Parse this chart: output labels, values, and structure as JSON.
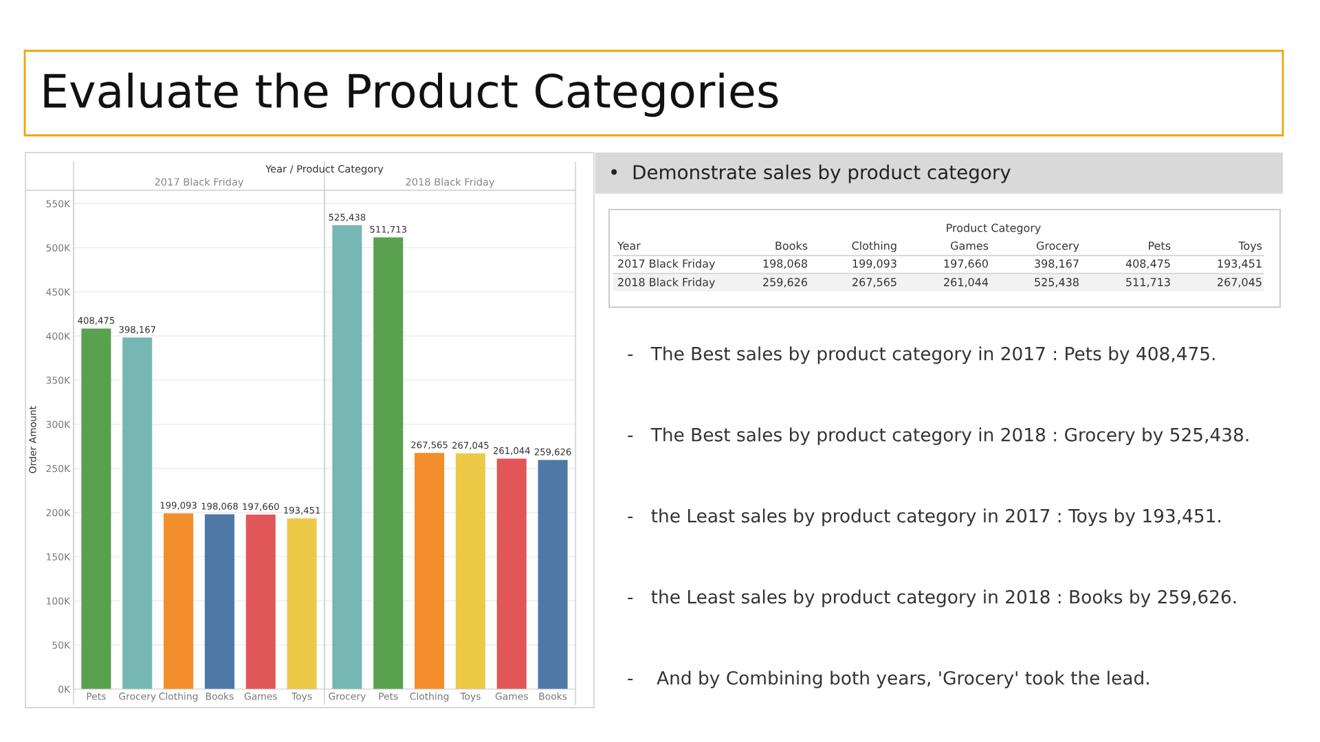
{
  "chart_data": [
    {
      "type": "bar",
      "title": "Evaluate the Product Categories",
      "ylabel": "Order Amount",
      "annotations": [
        "Year / Product Category",
        "2017 Black Friday"
      ],
      "categories": [
        "Pets",
        "Grocery",
        "Clothing",
        "Books",
        "Games",
        "Toys"
      ],
      "values": [
        408475,
        398167,
        199093,
        198068,
        197660,
        193451
      ],
      "colors": [
        "#59a14f",
        "#76b7b2",
        "#f28e2b",
        "#4e79a7",
        "#e15759",
        "#edc948"
      ],
      "value_labels": [
        "408,475",
        "398,167",
        "199,093",
        "198,068",
        "197,660",
        "193,451"
      ],
      "grid": "y",
      "ylim": [
        0,
        565000
      ],
      "yticks": [
        {
          "value": 0,
          "label": "0K"
        },
        {
          "value": 50000,
          "label": "50K"
        },
        {
          "value": 100000,
          "label": "100K"
        },
        {
          "value": 150000,
          "label": "150K"
        },
        {
          "value": 200000,
          "label": "200K"
        },
        {
          "value": 250000,
          "label": "250K"
        },
        {
          "value": 300000,
          "label": "300K"
        },
        {
          "value": 350000,
          "label": "350K"
        },
        {
          "value": 400000,
          "label": "400K"
        },
        {
          "value": 450000,
          "label": "450K"
        },
        {
          "value": 500000,
          "label": "500K"
        },
        {
          "value": 550000,
          "label": "550K"
        }
      ]
    },
    {
      "type": "bar",
      "annotations": [
        "2018 Black Friday"
      ],
      "categories": [
        "Grocery",
        "Pets",
        "Clothing",
        "Toys",
        "Games",
        "Books"
      ],
      "values": [
        525438,
        511713,
        267565,
        267045,
        261044,
        259626
      ],
      "colors": [
        "#76b7b2",
        "#59a14f",
        "#f28e2b",
        "#edc948",
        "#e15759",
        "#4e79a7"
      ],
      "value_labels": [
        "525,438",
        "511,713",
        "267,565",
        "267,045",
        "261,044",
        "259,626"
      ],
      "grid": "y",
      "tick_labels": "x",
      "ylim": [
        0,
        565000
      ],
      "yticks": [
        0,
        50000,
        100000,
        150000,
        200000,
        250000,
        300000,
        350000,
        400000,
        450000,
        500000,
        550000
      ]
    },
    {
      "type": "other",
      "title": "•  Demonstrate sales by product category",
      "annotations": [
        "Product Category",
        "Year",
        "Books",
        "Clothing",
        "Games",
        "Grocery",
        "Pets",
        "Toys",
        "2017 Black Friday",
        "198,068",
        "199,093",
        "197,660",
        "398,167",
        "408,475",
        "193,451",
        "2018 Black Friday",
        "259,626",
        "267,565",
        "261,044",
        "525,438",
        "511,713",
        "267,045",
        "-   The Best sales by product category in 2017 : Pets by 408,475.",
        "-   The Best sales by product category in 2018 : Grocery by 525,438.",
        "-   the Least sales by product category in 2017 : Toys by 193,451.",
        "-   the Least sales by product category in 2018 : Books by 259,626.",
        "-    And by Combining both years, 'Grocery' took the lead."
      ]
    }
  ]
}
